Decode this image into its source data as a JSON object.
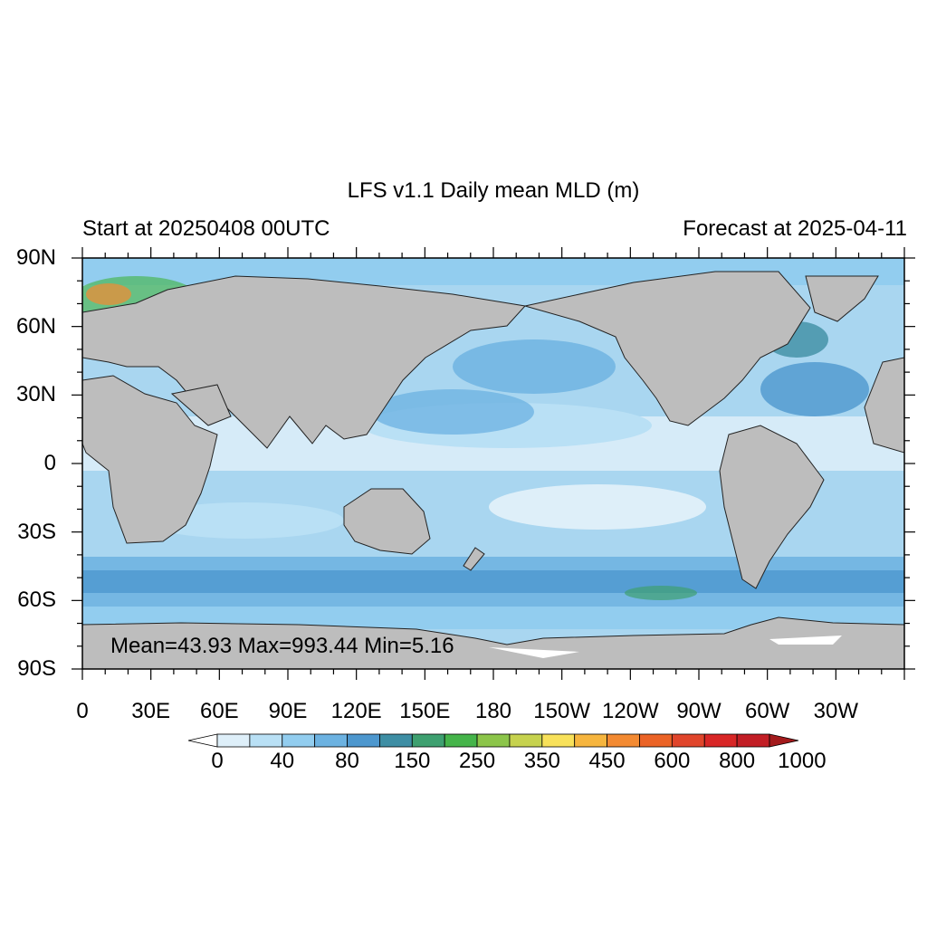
{
  "map": {
    "title": "LFS v1.1 Daily mean MLD (m)",
    "subtitle_left": "Start at 20250408 00UTC",
    "subtitle_right": "Forecast at 2025-04-11",
    "stats": "Mean=43.93  Max=993.44  Min=5.16",
    "projection": "cylindrical equidistant",
    "center_longitude": 180,
    "lat_labels": [
      "90N",
      "60N",
      "30N",
      "0",
      "30S",
      "60S",
      "90S"
    ],
    "lon_labels": [
      "0",
      "30E",
      "60E",
      "90E",
      "120E",
      "150E",
      "180",
      "150W",
      "120W",
      "90W",
      "60W",
      "30W"
    ],
    "land_color": "#bdbdbd",
    "ocean_base_color": "#a9d6f0"
  },
  "colorbar": {
    "labels": [
      "0",
      "40",
      "80",
      "150",
      "250",
      "350",
      "450",
      "600",
      "800",
      "1000"
    ],
    "colors": [
      "#ffffff",
      "#deeff9",
      "#b9e0f5",
      "#92cdef",
      "#6cb2e1",
      "#4d97ce",
      "#3e8ea4",
      "#3ea070",
      "#45b44a",
      "#8cc54a",
      "#c6d24e",
      "#f8e15a",
      "#f6b53e",
      "#f38a32",
      "#eb6326",
      "#e0452b",
      "#d82626",
      "#c21e25",
      "#a31a1c"
    ],
    "left_arrow": "open-triangle",
    "right_arrow": "filled-triangle"
  }
}
